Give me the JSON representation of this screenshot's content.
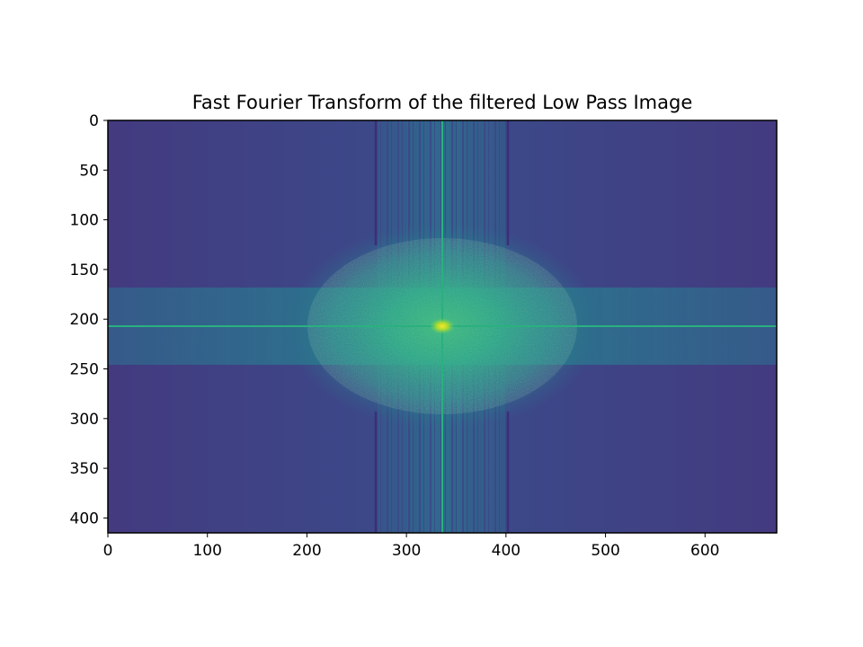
{
  "chart_data": {
    "type": "heatmap",
    "title": "Fast Fourier Transform of the filtered Low Pass Image",
    "xlabel": "",
    "ylabel": "",
    "image_width": 672,
    "image_height": 415,
    "xlim": [
      0,
      672
    ],
    "ylim": [
      415,
      0
    ],
    "y_axis_inverted": true,
    "x_ticks": [
      0,
      100,
      200,
      300,
      400,
      500,
      600
    ],
    "y_ticks": [
      0,
      50,
      100,
      150,
      200,
      250,
      300,
      350,
      400
    ],
    "x_tick_labels": [
      "0",
      "100",
      "200",
      "300",
      "400",
      "500",
      "600"
    ],
    "y_tick_labels": [
      "0",
      "50",
      "100",
      "150",
      "200",
      "250",
      "300",
      "350",
      "400"
    ],
    "colormap": "viridis",
    "spectrum_center": [
      336,
      207
    ],
    "grid": false,
    "legend": "none",
    "colors": {
      "background_low": "#3e3f86",
      "mid": "#2e7d8c",
      "high": "#21a585",
      "peak": "#fde725"
    }
  }
}
